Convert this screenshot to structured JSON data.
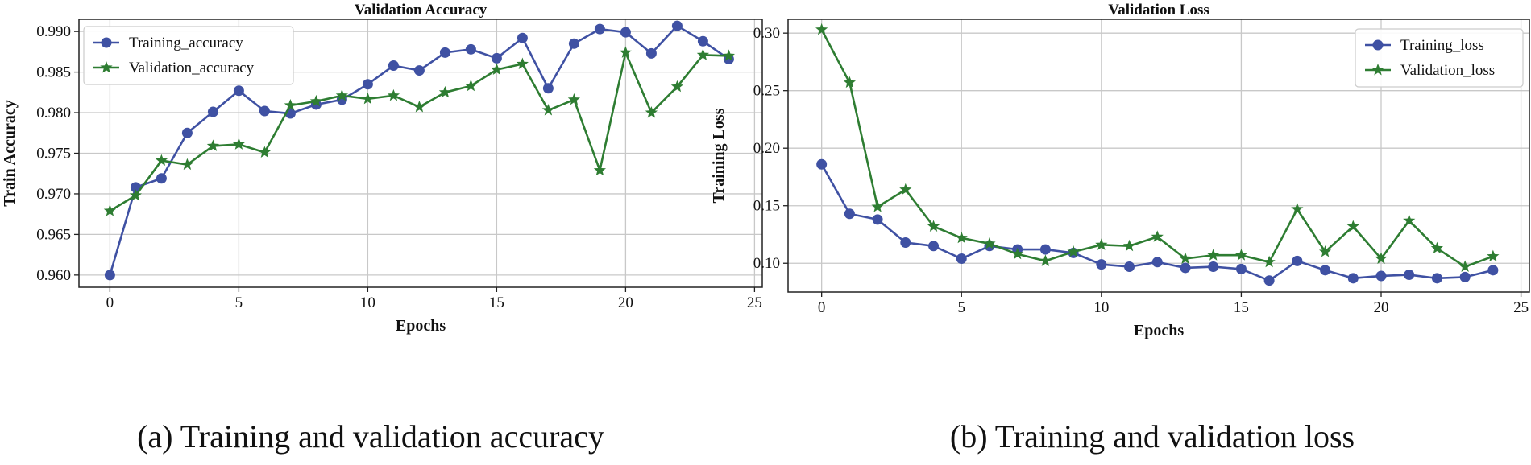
{
  "chart_data": [
    {
      "type": "line",
      "title": "Validation Accuracy",
      "xlabel": "Epochs",
      "ylabel": "Train Accuracy",
      "xlim": [
        -1.2,
        25.3
      ],
      "ylim": [
        0.9585,
        0.9915
      ],
      "xticks": [
        "0",
        "5",
        "10",
        "15",
        "20",
        "25"
      ],
      "yticks": [
        "0.960",
        "0.965",
        "0.970",
        "0.975",
        "0.980",
        "0.985",
        "0.990"
      ],
      "grid": true,
      "legend_position": "top-left",
      "caption": "(a) Training and validation accuracy",
      "x": [
        0,
        1,
        2,
        3,
        4,
        5,
        6,
        7,
        8,
        9,
        10,
        11,
        12,
        13,
        14,
        15,
        16,
        17,
        18,
        19,
        20,
        21,
        22,
        23,
        24
      ],
      "series": [
        {
          "name": "Training_accuracy",
          "color": "#3f51a3",
          "marker": "circle",
          "values": [
            0.96,
            0.9708,
            0.9719,
            0.9775,
            0.9801,
            0.9827,
            0.9802,
            0.9799,
            0.981,
            0.9816,
            0.9835,
            0.9858,
            0.9852,
            0.9874,
            0.9878,
            0.9867,
            0.9892,
            0.983,
            0.9885,
            0.9903,
            0.9899,
            0.9873,
            0.9907,
            0.9888,
            0.9866
          ]
        },
        {
          "name": "Validation_accuracy",
          "color": "#2e7d32",
          "marker": "star",
          "values": [
            0.9679,
            0.9698,
            0.9741,
            0.9736,
            0.9759,
            0.9761,
            0.9751,
            0.9809,
            0.9814,
            0.9821,
            0.9817,
            0.9821,
            0.9807,
            0.9825,
            0.9833,
            0.9853,
            0.986,
            0.9803,
            0.9816,
            0.9729,
            0.9874,
            0.98,
            0.9832,
            0.9871,
            0.987
          ]
        }
      ]
    },
    {
      "type": "line",
      "title": "Validation Loss",
      "xlabel": "Epochs",
      "ylabel": "Training Loss",
      "xlim": [
        -1.2,
        25.3
      ],
      "ylim": [
        0.075,
        0.312
      ],
      "xticks": [
        "0",
        "5",
        "10",
        "15",
        "20",
        "25"
      ],
      "yticks": [
        "0.10",
        "0.15",
        "0.20",
        "0.25",
        "0.30"
      ],
      "grid": true,
      "legend_position": "top-right",
      "caption": "(b) Training and validation loss",
      "x": [
        0,
        1,
        2,
        3,
        4,
        5,
        6,
        7,
        8,
        9,
        10,
        11,
        12,
        13,
        14,
        15,
        16,
        17,
        18,
        19,
        20,
        21,
        22,
        23,
        24
      ],
      "series": [
        {
          "name": "Training_loss",
          "color": "#3f51a3",
          "marker": "circle",
          "values": [
            0.186,
            0.143,
            0.138,
            0.118,
            0.115,
            0.104,
            0.115,
            0.112,
            0.112,
            0.109,
            0.099,
            0.097,
            0.101,
            0.096,
            0.097,
            0.095,
            0.085,
            0.102,
            0.094,
            0.087,
            0.089,
            0.09,
            0.087,
            0.088,
            0.094
          ]
        },
        {
          "name": "Validation_loss",
          "color": "#2e7d32",
          "marker": "star",
          "values": [
            0.303,
            0.257,
            0.149,
            0.164,
            0.132,
            0.122,
            0.117,
            0.108,
            0.102,
            0.11,
            0.116,
            0.115,
            0.123,
            0.104,
            0.107,
            0.107,
            0.101,
            0.147,
            0.11,
            0.132,
            0.104,
            0.137,
            0.113,
            0.097,
            0.106
          ]
        }
      ]
    }
  ]
}
